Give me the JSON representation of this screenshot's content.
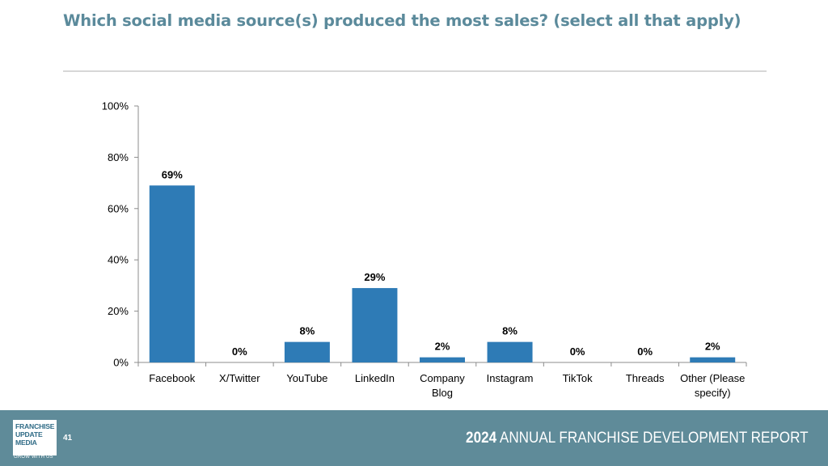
{
  "slide": {
    "title": "Which social media source(s) produced the most sales? (select all that apply)"
  },
  "footer": {
    "logo_lines": [
      "FRANCHISE",
      "UPDATE",
      "MEDIA"
    ],
    "logo_tagline": "GROW WITH US",
    "page_number": "41",
    "report_year": "2024",
    "report_title": "ANNUAL FRANCHISE DEVELOPMENT REPORT",
    "background_color": "#5f8b99"
  },
  "chart_data": {
    "type": "bar",
    "categories": [
      [
        "Facebook"
      ],
      [
        "X/Twitter"
      ],
      [
        "YouTube"
      ],
      [
        "LinkedIn"
      ],
      [
        "Company",
        "Blog"
      ],
      [
        "Instagram"
      ],
      [
        "TikTok"
      ],
      [
        "Threads"
      ],
      [
        "Other (Please",
        "specify)"
      ]
    ],
    "values": [
      69,
      0,
      8,
      29,
      2,
      8,
      0,
      0,
      2
    ],
    "value_labels": [
      "69%",
      "0%",
      "8%",
      "29%",
      "2%",
      "8%",
      "0%",
      "0%",
      "2%"
    ],
    "yticks": [
      0,
      20,
      40,
      60,
      80,
      100
    ],
    "ytick_labels": [
      "0%",
      "20%",
      "40%",
      "60%",
      "80%",
      "100%"
    ],
    "ylim": [
      0,
      100
    ],
    "bar_color": "#2e7bb6",
    "grid": false,
    "legend": "none"
  }
}
